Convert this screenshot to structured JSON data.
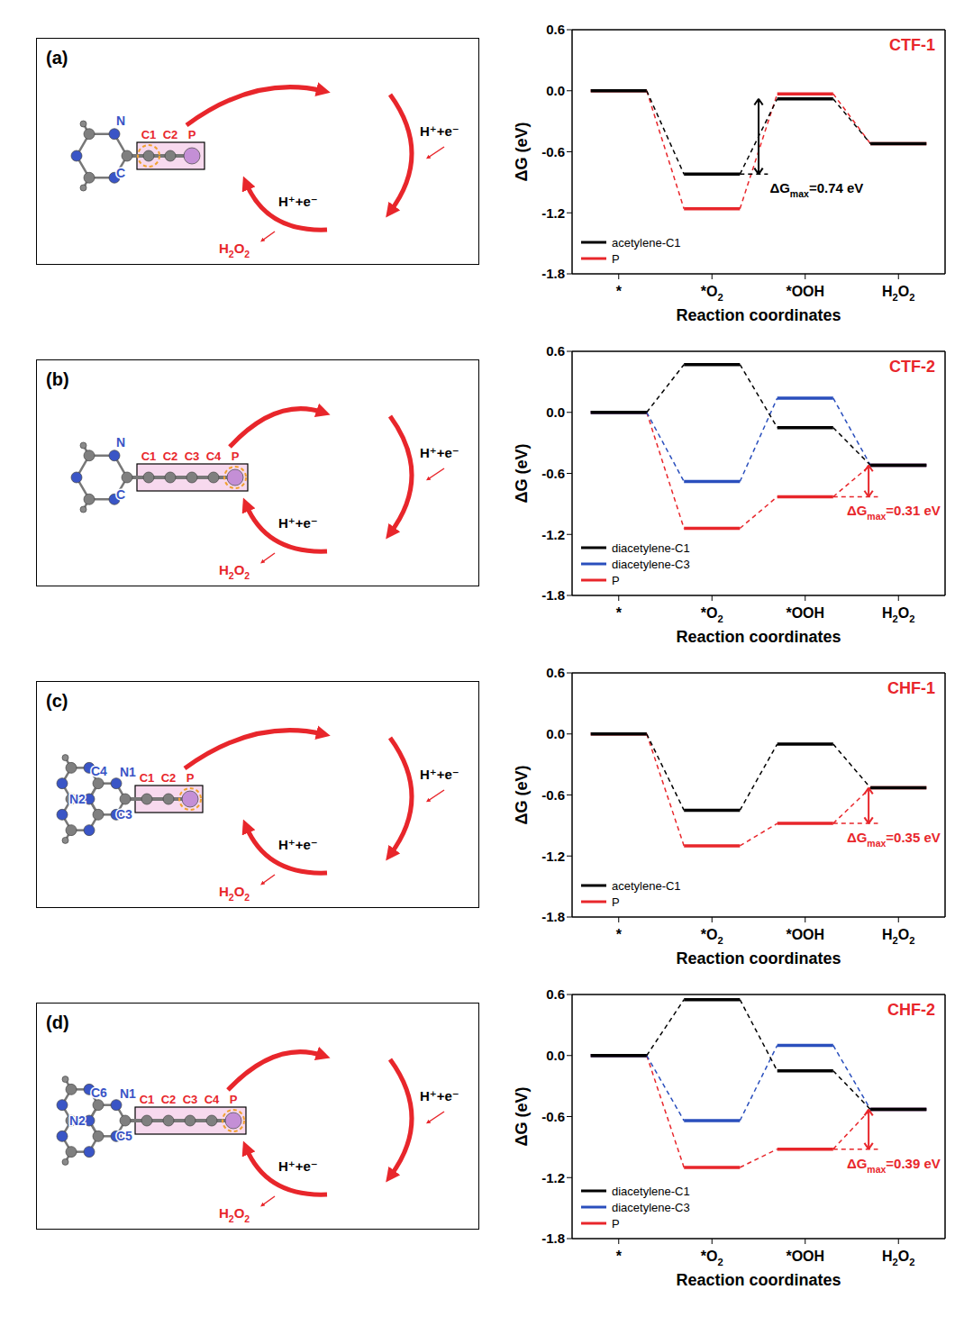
{
  "chart_data": [
    {
      "type": "line",
      "title": "CTF-1",
      "categories": [
        "*",
        "*O2",
        "*OOH",
        "H2O2"
      ],
      "x_label": "Reaction coordinates",
      "y_label": "ΔG (eV)",
      "ylim": [
        -1.8,
        0.6
      ],
      "yticks": [
        -1.8,
        -1.2,
        -0.6,
        {
          "value": 0,
          "label": "0.0"
        },
        0.6
      ],
      "legend": "lower left",
      "series": [
        {
          "name": "acetylene-C1",
          "color": "#000000",
          "values": [
            0,
            -0.82,
            -0.08,
            -0.52
          ]
        },
        {
          "name": "P",
          "color": "#e8262b",
          "values": [
            0,
            -1.16,
            -0.03,
            -0.52
          ]
        }
      ],
      "annotation": {
        "text": "ΔGmax=0.74 eV",
        "color": "#000000",
        "from": -0.82,
        "to": -0.08
      }
    },
    {
      "type": "line",
      "title": "CTF-2",
      "categories": [
        "*",
        "*O2",
        "*OOH",
        "H2O2"
      ],
      "x_label": "Reaction coordinates",
      "y_label": "ΔG (eV)",
      "ylim": [
        -1.8,
        0.6
      ],
      "yticks": [
        -1.8,
        -1.2,
        -0.6,
        {
          "value": 0,
          "label": "0.0"
        },
        0.6
      ],
      "legend": "lower left",
      "series": [
        {
          "name": "diacetylene-C1",
          "color": "#000000",
          "values": [
            0,
            0.47,
            -0.15,
            -0.52
          ]
        },
        {
          "name": "diacetylene-C3",
          "color": "#2a4fbd",
          "values": [
            0,
            -0.68,
            0.14,
            -0.52
          ]
        },
        {
          "name": "P",
          "color": "#e8262b",
          "values": [
            0,
            -1.14,
            -0.83,
            -0.52
          ]
        }
      ],
      "annotation": {
        "text": "ΔGmax=0.31 eV",
        "color": "#e8262b",
        "from": -0.83,
        "to": -0.52
      }
    },
    {
      "type": "line",
      "title": "CHF-1",
      "categories": [
        "*",
        "*O2",
        "*OOH",
        "H2O2"
      ],
      "x_label": "Reaction coordinates",
      "y_label": "ΔG (eV)",
      "ylim": [
        -1.8,
        0.6
      ],
      "yticks": [
        -1.8,
        -1.2,
        -0.6,
        {
          "value": 0,
          "label": "0.0"
        },
        0.6
      ],
      "legend": "lower left",
      "series": [
        {
          "name": "acetylene-C1",
          "color": "#000000",
          "values": [
            0,
            -0.75,
            -0.1,
            -0.53
          ]
        },
        {
          "name": "P",
          "color": "#e8262b",
          "values": [
            0,
            -1.1,
            -0.88,
            -0.53
          ]
        }
      ],
      "annotation": {
        "text": "ΔGmax=0.35 eV",
        "color": "#e8262b",
        "from": -0.88,
        "to": -0.53
      }
    },
    {
      "type": "line",
      "title": "CHF-2",
      "categories": [
        "*",
        "*O2",
        "*OOH",
        "H2O2"
      ],
      "x_label": "Reaction coordinates",
      "y_label": "ΔG (eV)",
      "ylim": [
        -1.8,
        0.6
      ],
      "yticks": [
        -1.8,
        -1.2,
        -0.6,
        {
          "value": 0,
          "label": "0.0"
        },
        0.6
      ],
      "legend": "lower left",
      "series": [
        {
          "name": "diacetylene-C1",
          "color": "#000000",
          "values": [
            0,
            0.55,
            -0.15,
            -0.53
          ]
        },
        {
          "name": "diacetylene-C3",
          "color": "#2a4fbd",
          "values": [
            0,
            -0.64,
            0.1,
            -0.53
          ]
        },
        {
          "name": "P",
          "color": "#e8262b",
          "values": [
            0,
            -1.1,
            -0.92,
            -0.53
          ]
        }
      ],
      "annotation": {
        "text": "ΔGmax=0.39 eV",
        "color": "#e8262b",
        "from": -0.92,
        "to": -0.53
      }
    }
  ],
  "schemes": [
    {
      "label": "(a)",
      "ring_labels": [
        "N",
        "C"
      ],
      "chain": [
        "C1",
        "C2",
        "P"
      ],
      "active_site": "C1",
      "intermediate_label": "C1",
      "step": "H⁺+e⁻",
      "product": "H2O2"
    },
    {
      "label": "(b)",
      "ring_labels": [
        "N",
        "C"
      ],
      "chain": [
        "C1",
        "C2",
        "C3",
        "C4",
        "P"
      ],
      "active_site": "P",
      "intermediate_label": "P",
      "step": "H⁺+e⁻",
      "product": "H2O2"
    },
    {
      "label": "(c)",
      "ring_labels": [
        "C4",
        "N1",
        "N2",
        "C3"
      ],
      "chain": [
        "C1",
        "C2",
        "P"
      ],
      "active_site": "P",
      "intermediate_label": "P",
      "step": "H⁺+e⁻",
      "product": "H2O2"
    },
    {
      "label": "(d)",
      "ring_labels": [
        "C6",
        "N1",
        "N2",
        "C5"
      ],
      "chain": [
        "C1",
        "C2",
        "C3",
        "C4",
        "P"
      ],
      "active_site": "P",
      "intermediate_label": "P",
      "step": "H⁺+e⁻",
      "product": "H2O2"
    }
  ]
}
